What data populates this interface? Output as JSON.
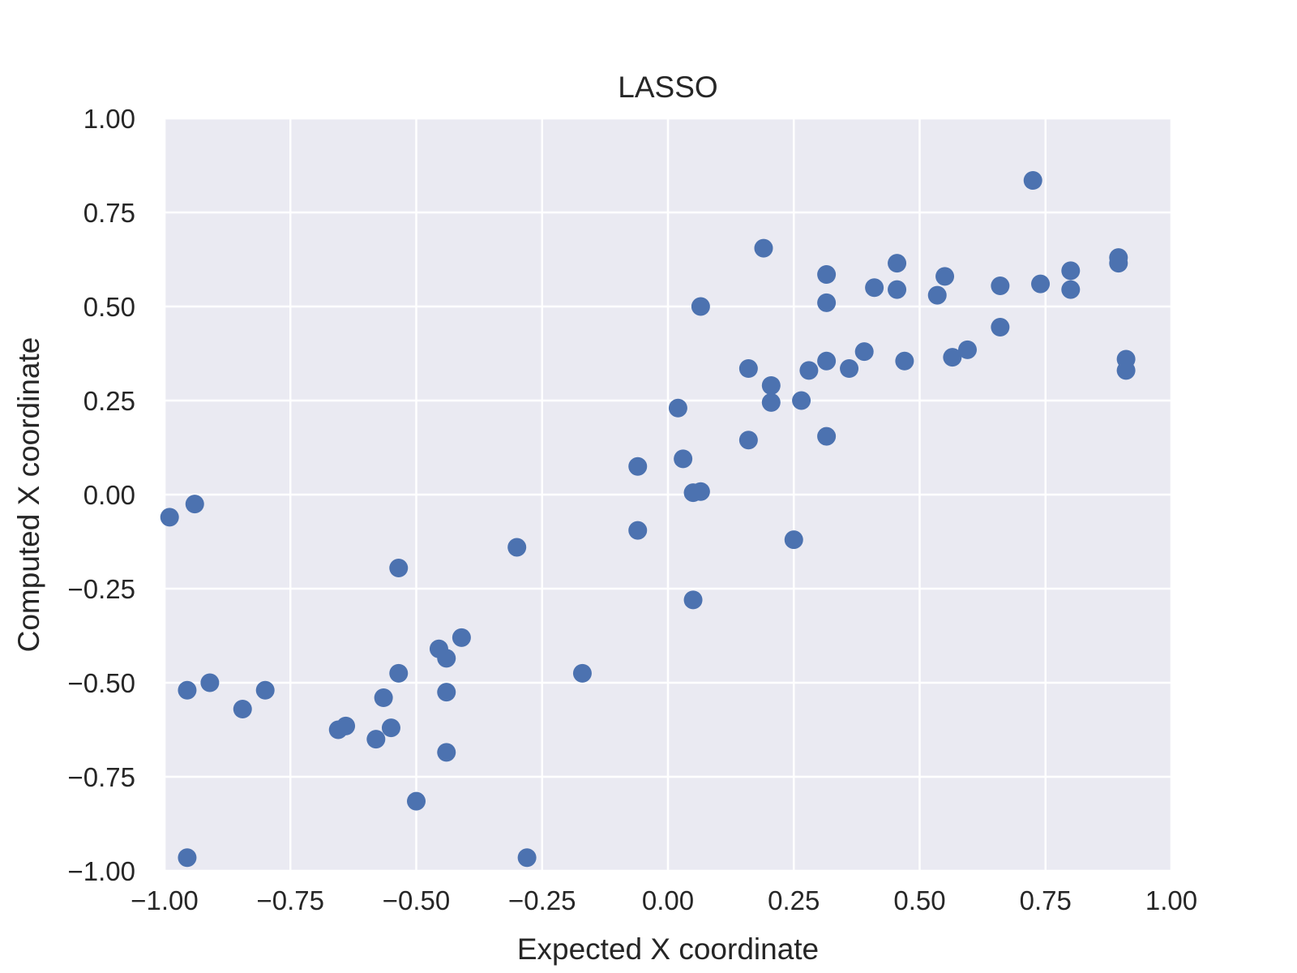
{
  "chart_data": {
    "type": "scatter",
    "title": "LASSO",
    "xlabel": "Expected X coordinate",
    "ylabel": "Computed X coordinate",
    "xlim": [
      -1.0,
      1.0
    ],
    "ylim": [
      -1.0,
      1.0
    ],
    "xticks": [
      "−1.00",
      "−0.75",
      "−0.50",
      "−0.25",
      "0.00",
      "0.25",
      "0.50",
      "0.75",
      "1.00"
    ],
    "yticks": [
      "1.00",
      "0.75",
      "0.50",
      "0.25",
      "0.00",
      "−0.25",
      "−0.50",
      "−0.75",
      "−1.00"
    ],
    "grid": true,
    "background_color": "#eaeaf2",
    "grid_color": "#ffffff",
    "marker_color": "#4c72b0",
    "points": [
      {
        "x": -0.99,
        "y": -0.06
      },
      {
        "x": -0.94,
        "y": -0.025
      },
      {
        "x": -0.955,
        "y": -0.52
      },
      {
        "x": -0.91,
        "y": -0.5
      },
      {
        "x": -0.955,
        "y": -0.965
      },
      {
        "x": -0.845,
        "y": -0.57
      },
      {
        "x": -0.8,
        "y": -0.52
      },
      {
        "x": -0.655,
        "y": -0.625
      },
      {
        "x": -0.64,
        "y": -0.615
      },
      {
        "x": -0.58,
        "y": -0.65
      },
      {
        "x": -0.565,
        "y": -0.54
      },
      {
        "x": -0.55,
        "y": -0.62
      },
      {
        "x": -0.535,
        "y": -0.475
      },
      {
        "x": -0.535,
        "y": -0.195
      },
      {
        "x": -0.5,
        "y": -0.815
      },
      {
        "x": -0.455,
        "y": -0.41
      },
      {
        "x": -0.44,
        "y": -0.435
      },
      {
        "x": -0.44,
        "y": -0.525
      },
      {
        "x": -0.44,
        "y": -0.685
      },
      {
        "x": -0.41,
        "y": -0.38
      },
      {
        "x": -0.3,
        "y": -0.14
      },
      {
        "x": -0.28,
        "y": -0.965
      },
      {
        "x": -0.17,
        "y": -0.475
      },
      {
        "x": -0.06,
        "y": 0.075
      },
      {
        "x": -0.06,
        "y": -0.095
      },
      {
        "x": 0.02,
        "y": 0.23
      },
      {
        "x": 0.03,
        "y": 0.095
      },
      {
        "x": 0.05,
        "y": 0.005
      },
      {
        "x": 0.065,
        "y": 0.008
      },
      {
        "x": 0.05,
        "y": -0.28
      },
      {
        "x": 0.065,
        "y": 0.5
      },
      {
        "x": 0.16,
        "y": 0.335
      },
      {
        "x": 0.16,
        "y": 0.145
      },
      {
        "x": 0.19,
        "y": 0.655
      },
      {
        "x": 0.205,
        "y": 0.29
      },
      {
        "x": 0.205,
        "y": 0.245
      },
      {
        "x": 0.25,
        "y": -0.12
      },
      {
        "x": 0.265,
        "y": 0.25
      },
      {
        "x": 0.28,
        "y": 0.33
      },
      {
        "x": 0.315,
        "y": 0.585
      },
      {
        "x": 0.315,
        "y": 0.51
      },
      {
        "x": 0.315,
        "y": 0.355
      },
      {
        "x": 0.315,
        "y": 0.155
      },
      {
        "x": 0.36,
        "y": 0.335
      },
      {
        "x": 0.39,
        "y": 0.38
      },
      {
        "x": 0.41,
        "y": 0.55
      },
      {
        "x": 0.455,
        "y": 0.615
      },
      {
        "x": 0.455,
        "y": 0.545
      },
      {
        "x": 0.47,
        "y": 0.355
      },
      {
        "x": 0.535,
        "y": 0.53
      },
      {
        "x": 0.55,
        "y": 0.58
      },
      {
        "x": 0.565,
        "y": 0.365
      },
      {
        "x": 0.595,
        "y": 0.385
      },
      {
        "x": 0.66,
        "y": 0.555
      },
      {
        "x": 0.66,
        "y": 0.445
      },
      {
        "x": 0.725,
        "y": 0.835
      },
      {
        "x": 0.74,
        "y": 0.56
      },
      {
        "x": 0.8,
        "y": 0.595
      },
      {
        "x": 0.8,
        "y": 0.545
      },
      {
        "x": 0.895,
        "y": 0.63
      },
      {
        "x": 0.895,
        "y": 0.615
      },
      {
        "x": 0.91,
        "y": 0.36
      },
      {
        "x": 0.91,
        "y": 0.33
      }
    ]
  }
}
